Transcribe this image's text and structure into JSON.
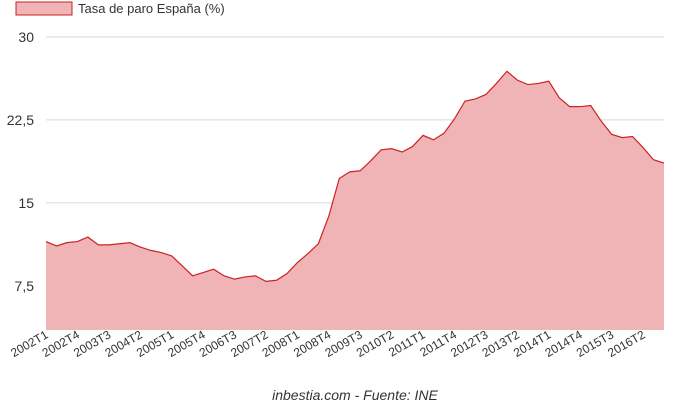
{
  "chart_data": {
    "type": "area",
    "title": "",
    "xlabel": "",
    "ylabel": "",
    "ylim": [
      3.5,
      30
    ],
    "yticks": [
      7.5,
      15,
      22.5,
      30
    ],
    "ytick_labels": [
      "7,5",
      "15",
      "22,5",
      "30"
    ],
    "grid": true,
    "legend_placement": "top-left",
    "credit": "inbestia.com - Fuente: INE",
    "colors": {
      "line": "#cc2222",
      "fill": "#f0b4b6",
      "grid": "#d9d9d9"
    },
    "x_tick_labels": [
      "2002T1",
      "2002T4",
      "2003T3",
      "2004T2",
      "2005T1",
      "2005T4",
      "2006T3",
      "2007T2",
      "2008T1",
      "2008T4",
      "2009T3",
      "2010T2",
      "2011T1",
      "2011T4",
      "2012T3",
      "2013T2",
      "2014T1",
      "2014T4",
      "2015T3",
      "2016T2"
    ],
    "series": [
      {
        "name": "Tasa de paro España (%)",
        "x": [
          "2002T1",
          "2002T2",
          "2002T3",
          "2002T4",
          "2003T1",
          "2003T2",
          "2003T3",
          "2003T4",
          "2004T1",
          "2004T2",
          "2004T3",
          "2004T4",
          "2005T1",
          "2005T2",
          "2005T3",
          "2005T4",
          "2006T1",
          "2006T2",
          "2006T3",
          "2006T4",
          "2007T1",
          "2007T2",
          "2007T3",
          "2007T4",
          "2008T1",
          "2008T2",
          "2008T3",
          "2008T4",
          "2009T1",
          "2009T2",
          "2009T3",
          "2009T4",
          "2010T1",
          "2010T2",
          "2010T3",
          "2010T4",
          "2011T1",
          "2011T2",
          "2011T3",
          "2011T4",
          "2012T1",
          "2012T2",
          "2012T3",
          "2012T4",
          "2013T1",
          "2013T2",
          "2013T3",
          "2013T4",
          "2014T1",
          "2014T2",
          "2014T3",
          "2014T4",
          "2015T1",
          "2015T2",
          "2015T3",
          "2015T4",
          "2016T1",
          "2016T2",
          "2016T3",
          "2016T4"
        ],
        "values": [
          11.5,
          11.1,
          11.4,
          11.5,
          11.9,
          11.2,
          11.2,
          11.3,
          11.4,
          11.0,
          10.7,
          10.5,
          10.2,
          9.3,
          8.4,
          8.7,
          9.0,
          8.4,
          8.1,
          8.3,
          8.4,
          7.9,
          8.0,
          8.6,
          9.6,
          10.4,
          11.3,
          13.8,
          17.2,
          17.8,
          17.9,
          18.8,
          19.8,
          19.9,
          19.6,
          20.1,
          21.1,
          20.7,
          21.3,
          22.6,
          24.2,
          24.4,
          24.8,
          25.8,
          26.9,
          26.1,
          25.7,
          25.8,
          26.0,
          24.5,
          23.7,
          23.7,
          23.8,
          22.4,
          21.2,
          20.9,
          21.0,
          20.0,
          18.9,
          18.6
        ]
      }
    ]
  }
}
